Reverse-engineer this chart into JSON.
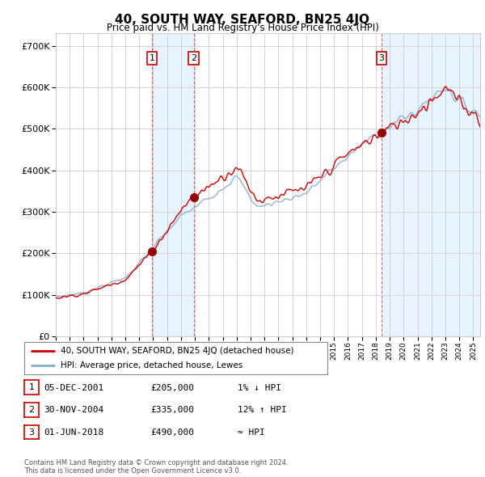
{
  "title": "40, SOUTH WAY, SEAFORD, BN25 4JQ",
  "subtitle": "Price paid vs. HM Land Registry's House Price Index (HPI)",
  "ytick_vals": [
    0,
    100000,
    200000,
    300000,
    400000,
    500000,
    600000,
    700000
  ],
  "ylim": [
    0,
    730000
  ],
  "xlim_start": 1995.0,
  "xlim_end": 2025.5,
  "sale_dates": [
    2001.92,
    2004.92,
    2018.42
  ],
  "sale_prices": [
    205000,
    335000,
    490000
  ],
  "sale_labels": [
    "1",
    "2",
    "3"
  ],
  "red_color": "#cc0000",
  "blue_line_color": "#88aacc",
  "dashed_color": "#cc0000",
  "bg_shade_color": "#ddeeff",
  "legend_label_red": "40, SOUTH WAY, SEAFORD, BN25 4JQ (detached house)",
  "legend_label_blue": "HPI: Average price, detached house, Lewes",
  "table_rows": [
    [
      "1",
      "05-DEC-2001",
      "£205,000",
      "1% ↓ HPI"
    ],
    [
      "2",
      "30-NOV-2004",
      "£335,000",
      "12% ↑ HPI"
    ],
    [
      "3",
      "01-JUN-2018",
      "£490,000",
      "≈ HPI"
    ]
  ],
  "footer": "Contains HM Land Registry data © Crown copyright and database right 2024.\nThis data is licensed under the Open Government Licence v3.0.",
  "background_color": "#ffffff",
  "plot_bg_color": "#ffffff",
  "grid_color": "#cccccc"
}
